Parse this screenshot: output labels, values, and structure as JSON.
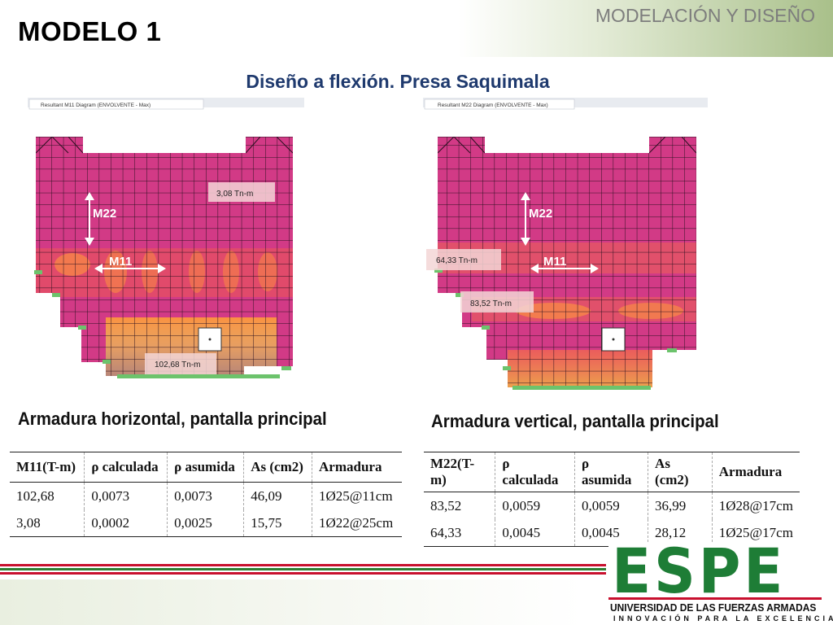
{
  "header": {
    "title": "MODELO 1",
    "section": "MODELACIÓN Y DISEÑO",
    "subtitle": "Diseño a flexión. Presa Saquimala"
  },
  "panels": [
    {
      "tab_label": "Resultant M11 Diagram   (ENVOLVENTE - Max)",
      "axis_vertical": "M22",
      "axis_horizontal": "M11",
      "annotations": [
        "3,08 Tn-m",
        "102,68 Tn-m"
      ],
      "caption": "Armadura horizontal, pantalla principal"
    },
    {
      "tab_label": "Resultant M22 Diagram   (ENVOLVENTE - Max)",
      "axis_vertical": "M22",
      "axis_horizontal": "M11",
      "annotations": [
        "64,33 Tn-m",
        "83,52 Tn-m"
      ],
      "caption": "Armadura vertical, pantalla principal"
    }
  ],
  "tables": [
    {
      "headers": [
        "M11(T-m)",
        "ρ calculada",
        "ρ asumida",
        "As (cm2)",
        "Armadura"
      ],
      "rows": [
        [
          "102,68",
          "0,0073",
          "0,0073",
          "46,09",
          "1Ø25@11cm"
        ],
        [
          "3,08",
          "0,0002",
          "0,0025",
          "15,75",
          "1Ø22@25cm"
        ]
      ]
    },
    {
      "headers": [
        "M22(T-m)",
        "ρ calculada",
        "ρ asumida",
        "As (cm2)",
        "Armadura"
      ],
      "rows": [
        [
          "83,52",
          "0,0059",
          "0,0059",
          "36,99",
          "1Ø28@17cm"
        ],
        [
          "64,33",
          "0,0045",
          "0,0045",
          "28,12",
          "1Ø25@17cm"
        ]
      ]
    }
  ],
  "logo": {
    "wordmark": "ESPE",
    "university": "UNIVERSIDAD DE LAS FUERZAS ARMADAS",
    "tagline": "INNOVACIÓN PARA LA EXCELENCIA"
  },
  "colors": {
    "title_blue": "#1f3a6e",
    "mesh_magenta": "#d23a86",
    "logo_green": "#1e7d36",
    "stripe_red": "#c8102e",
    "stripe_green": "#2e7d32"
  }
}
